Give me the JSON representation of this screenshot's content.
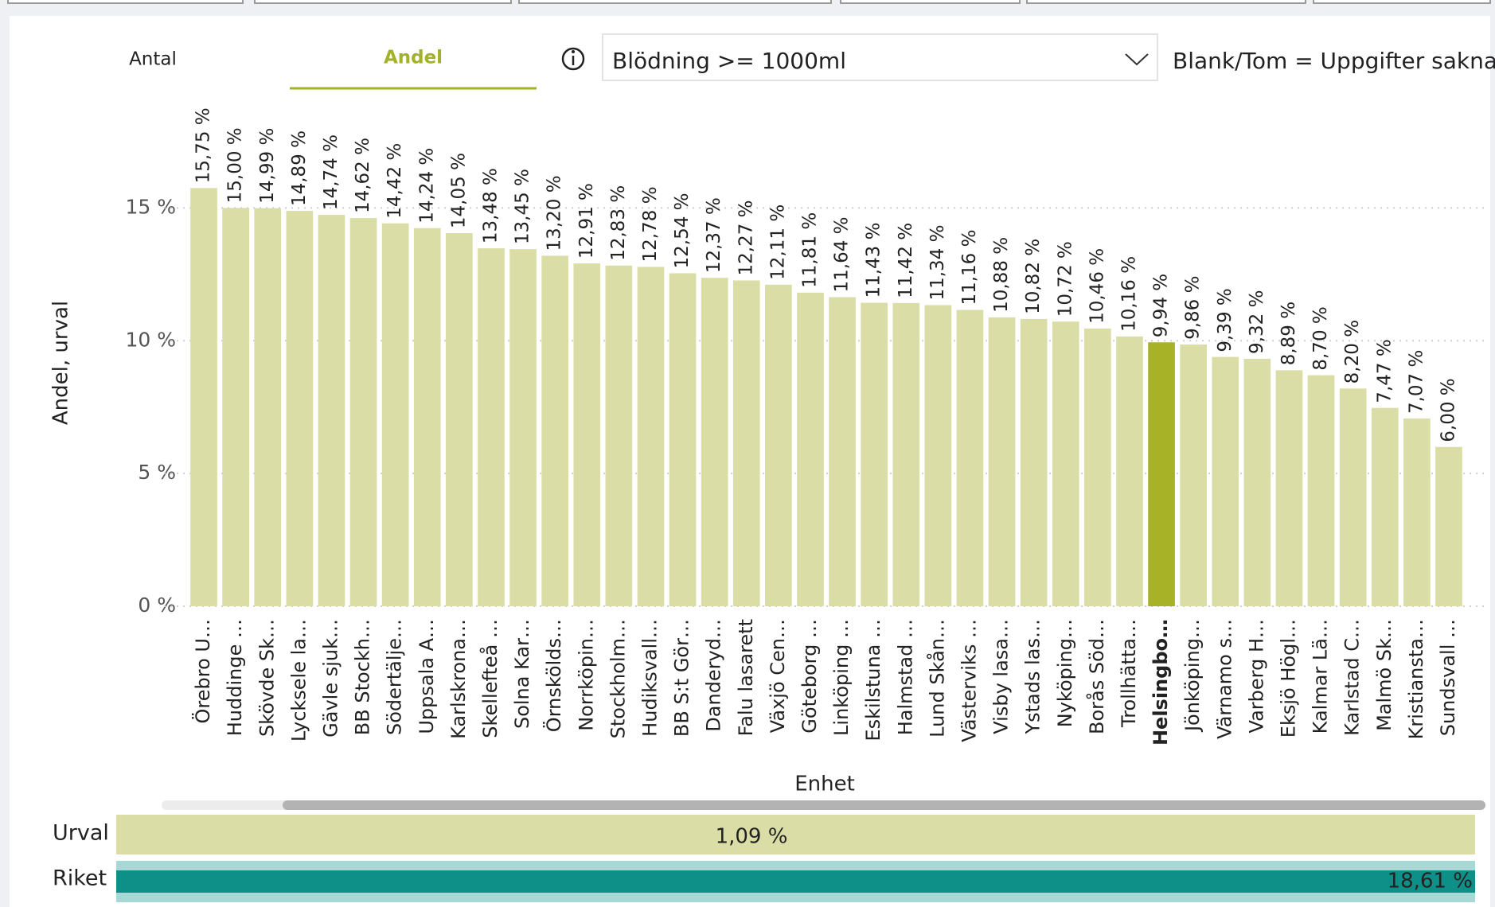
{
  "tabs": [
    "Antal",
    "Andel"
  ],
  "dropdown": "Blödning >= 1000ml",
  "note": "Blank/Tom = Uppgifter saknas",
  "chart_data": {
    "type": "bar",
    "x_label": "Enhet",
    "y_label": "Andel, urval",
    "categories": [
      "Örebro U…",
      "Huddinge …",
      "Skövde Sk…",
      "Lycksele la…",
      "Gävle sjuk…",
      "BB Stockh…",
      "Södertälje…",
      "Uppsala A…",
      "Karlskrona…",
      "Skellefteå …",
      "Solna Kar…",
      "Örnskölds…",
      "Norrköpin…",
      "Stockholm…",
      "Hudiksvall…",
      "BB S:t Gör…",
      "Danderyd…",
      "Falu lasarett",
      "Växjö Cen…",
      "Göteborg …",
      "Linköping …",
      "Eskilstuna …",
      "Halmstad …",
      "Lund Skån…",
      "Västerviks …",
      "Visby lasa…",
      "Ystads las…",
      "Nyköping…",
      "Borås Söd…",
      "Trollhätta…",
      "Helsingbo…",
      "Jönköping…",
      "Värnamo s…",
      "Varberg H…",
      "Eksjö Högl…",
      "Kalmar Lä…",
      "Karlstad C…",
      "Malmö Sk…",
      "Kristiansta…",
      "Sundsvall …"
    ],
    "values": [
      15.75,
      15.0,
      14.99,
      14.89,
      14.74,
      14.62,
      14.42,
      14.24,
      14.05,
      13.48,
      13.45,
      13.2,
      12.91,
      12.83,
      12.78,
      12.54,
      12.37,
      12.27,
      12.11,
      11.81,
      11.64,
      11.43,
      11.42,
      11.34,
      11.16,
      10.88,
      10.82,
      10.72,
      10.46,
      10.16,
      9.94,
      9.86,
      9.39,
      9.32,
      8.89,
      8.7,
      8.2,
      7.47,
      7.07,
      6.0
    ],
    "value_labels": [
      "15,75 %",
      "15,00 %",
      "14,99 %",
      "14,89 %",
      "14,74 %",
      "14,62 %",
      "14,42 %",
      "14,24 %",
      "14,05 %",
      "13,48 %",
      "13,45 %",
      "13,20 %",
      "12,91 %",
      "12,83 %",
      "12,78 %",
      "12,54 %",
      "12,37 %",
      "12,27 %",
      "12,11 %",
      "11,81 %",
      "11,64 %",
      "11,43 %",
      "11,42 %",
      "11,34 %",
      "11,16 %",
      "10,88 %",
      "10,82 %",
      "10,72 %",
      "10,46 %",
      "10,16 %",
      "9,94 %",
      "9,86 %",
      "9,39 %",
      "9,32 %",
      "8,89 %",
      "8,70 %",
      "8,20 %",
      "7,47 %",
      "7,07 %",
      "6,00 %"
    ],
    "color": "#dadea6",
    "highlight": "Helsingbo…",
    "highlight_color": "#a8b227",
    "ylim": [
      0,
      16
    ],
    "yticks": [
      {
        "value": 0,
        "label": "0 %"
      },
      {
        "value": 5,
        "label": "5 %"
      },
      {
        "value": 10,
        "label": "10 %"
      },
      {
        "value": 15,
        "label": "15 %"
      }
    ],
    "grid": true
  },
  "summary": [
    {
      "label": "Urval",
      "value": 1.09,
      "value_label": "1,09 %",
      "color": "#dadea6"
    },
    {
      "label": "Riket",
      "value": 18.61,
      "value_label": "18,61 %",
      "color": "#0e8f87"
    }
  ]
}
